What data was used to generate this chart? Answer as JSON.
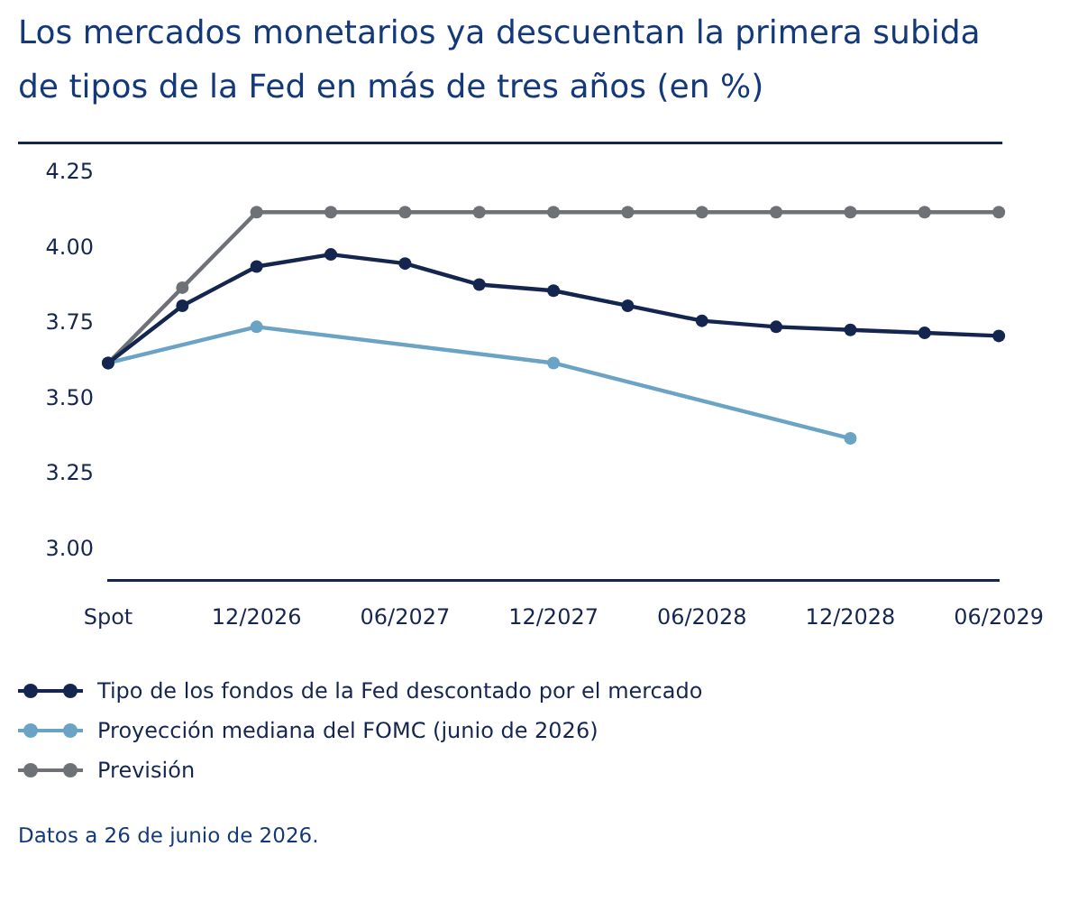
{
  "chart_data": {
    "type": "line",
    "title": "Los mercados monetarios ya descuentan la primera subida de tipos de la Fed en más de tres años (en %)",
    "categories": [
      "Spot",
      null,
      "12/2026",
      null,
      "06/2027",
      null,
      "12/2027",
      null,
      "06/2028",
      null,
      "12/2028",
      null,
      "06/2029"
    ],
    "series": [
      {
        "name": "Tipo de los fondos de la Fed descontado por el mercado",
        "color": "#14254f",
        "values": [
          3.62,
          3.81,
          3.94,
          3.98,
          3.95,
          3.88,
          3.86,
          3.81,
          3.76,
          3.74,
          3.73,
          3.72,
          3.71
        ]
      },
      {
        "name": "Proyección mediana del FOMC (junio de 2026)",
        "color": "#6aa3c4",
        "values": [
          3.62,
          null,
          3.74,
          null,
          null,
          null,
          3.62,
          null,
          null,
          null,
          3.37,
          null,
          null
        ]
      },
      {
        "name": "Previsión",
        "color": "#6e7276",
        "values": [
          3.62,
          3.87,
          4.12,
          4.12,
          4.12,
          4.12,
          4.12,
          4.12,
          4.12,
          4.12,
          4.12,
          4.12,
          4.12
        ]
      }
    ],
    "ylim": [
      2.9,
      4.35
    ],
    "yticks": [
      {
        "value": 3,
        "label": "3.00"
      },
      {
        "value": 3.25,
        "label": "3.25"
      },
      {
        "value": 3.5,
        "label": "3.50"
      },
      {
        "value": 3.75,
        "label": "3.75"
      },
      {
        "value": 4,
        "label": "4.00"
      },
      {
        "value": 4.25,
        "label": "4.25"
      }
    ],
    "grid": false,
    "legend": "bottom",
    "marker": "circle",
    "line_style": "solid",
    "annotations": [
      "Datos a 26 de junio de 2026."
    ]
  }
}
